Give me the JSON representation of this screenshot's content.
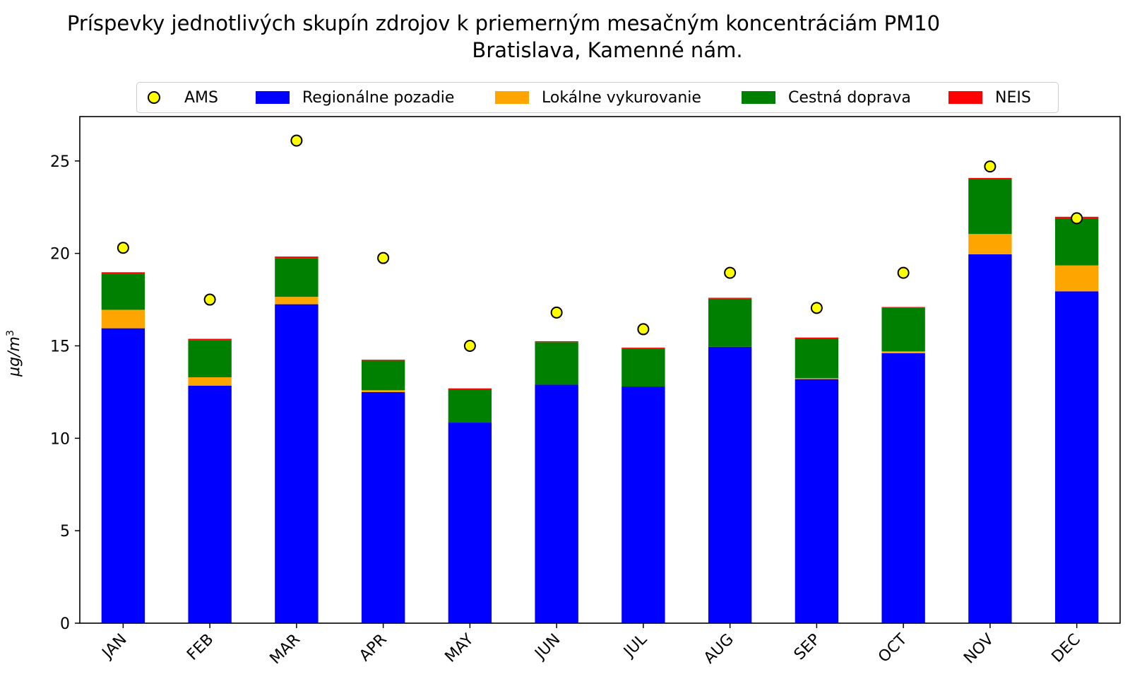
{
  "chart_data": {
    "type": "bar",
    "stacked": true,
    "title": "Príspevky jednotlivých skupín zdrojov k priemerným mesačným koncentráciám PM10",
    "subtitle": "Bratislava, Kamenné nám.",
    "ylabel_main": "μg/m",
    "ylabel_sup": "3",
    "xlabel": "",
    "ylim": [
      0,
      27.4
    ],
    "yticks": [
      0,
      5,
      10,
      15,
      20,
      25
    ],
    "categories": [
      "JAN",
      "FEB",
      "MAR",
      "APR",
      "MAY",
      "JUN",
      "JUL",
      "AUG",
      "SEP",
      "OCT",
      "NOV",
      "DEC"
    ],
    "series": [
      {
        "name": "Regionálne pozadie",
        "color": "#0000ff",
        "values": [
          15.95,
          12.85,
          17.25,
          12.5,
          10.85,
          12.9,
          12.8,
          14.95,
          13.2,
          14.6,
          19.95,
          17.95
        ]
      },
      {
        "name": "Lokálne vykurovanie",
        "color": "#ffa500",
        "values": [
          1.0,
          0.45,
          0.4,
          0.1,
          0.0,
          0.0,
          0.0,
          0.0,
          0.05,
          0.1,
          1.1,
          1.4
        ]
      },
      {
        "name": "Cestná doprava",
        "color": "#008000",
        "values": [
          1.95,
          2.0,
          2.1,
          1.6,
          1.8,
          2.3,
          2.05,
          2.6,
          2.15,
          2.35,
          2.95,
          2.55
        ]
      },
      {
        "name": "NEIS",
        "color": "#ff0000",
        "values": [
          0.08,
          0.08,
          0.08,
          0.05,
          0.05,
          0.05,
          0.05,
          0.05,
          0.05,
          0.05,
          0.08,
          0.08
        ]
      }
    ],
    "points": {
      "name": "AMS",
      "color": "#ffff00",
      "values": [
        20.3,
        17.5,
        26.1,
        19.75,
        15.0,
        16.8,
        15.9,
        18.95,
        17.05,
        18.95,
        24.7,
        21.9
      ]
    },
    "legend": [
      "AMS",
      "Regionálne pozadie",
      "Lokálne vykurovanie",
      "Cestná doprava",
      "NEIS"
    ],
    "legend_position": "top-center",
    "grid": false
  }
}
